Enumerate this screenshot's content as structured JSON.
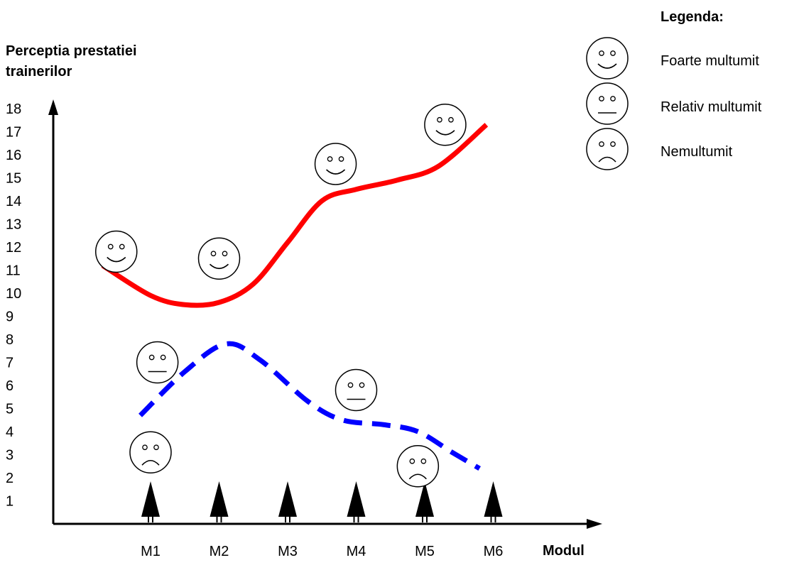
{
  "chart_data": {
    "type": "line",
    "ylabel": "Perceptia prestatiei trainerilor",
    "xlabel": "Modul",
    "categories": [
      "M1",
      "M2",
      "M3",
      "M4",
      "M5",
      "M6"
    ],
    "y_ticks": [
      1,
      2,
      3,
      4,
      5,
      6,
      7,
      8,
      9,
      10,
      11,
      12,
      13,
      14,
      15,
      16,
      17,
      18
    ],
    "ylim": [
      0,
      19
    ],
    "series": [
      {
        "color": "#ff0000",
        "style": "solid",
        "points": [
          {
            "x": 0.3,
            "y": 11.2
          },
          {
            "x": 1.0,
            "y": 9.9
          },
          {
            "x": 1.5,
            "y": 9.5
          },
          {
            "x": 2.0,
            "y": 9.6
          },
          {
            "x": 2.5,
            "y": 10.4
          },
          {
            "x": 3.0,
            "y": 12.2
          },
          {
            "x": 3.5,
            "y": 14.0
          },
          {
            "x": 4.0,
            "y": 14.5
          },
          {
            "x": 4.6,
            "y": 14.9
          },
          {
            "x": 5.2,
            "y": 15.5
          },
          {
            "x": 5.9,
            "y": 17.3
          }
        ]
      },
      {
        "color": "#0000ff",
        "style": "dashed",
        "points": [
          {
            "x": 0.85,
            "y": 4.7
          },
          {
            "x": 1.5,
            "y": 6.6
          },
          {
            "x": 2.1,
            "y": 7.8
          },
          {
            "x": 2.6,
            "y": 7.1
          },
          {
            "x": 3.3,
            "y": 5.3
          },
          {
            "x": 3.8,
            "y": 4.5
          },
          {
            "x": 4.4,
            "y": 4.3
          },
          {
            "x": 4.9,
            "y": 4.0
          },
          {
            "x": 5.4,
            "y": 3.1
          },
          {
            "x": 5.8,
            "y": 2.4
          }
        ]
      }
    ],
    "annotations": [
      {
        "face": "happy",
        "x": 0.5,
        "y": 11.8
      },
      {
        "face": "happy",
        "x": 2.0,
        "y": 11.5
      },
      {
        "face": "happy",
        "x": 3.7,
        "y": 15.6
      },
      {
        "face": "happy",
        "x": 5.3,
        "y": 17.3
      },
      {
        "face": "neutral",
        "x": 1.1,
        "y": 7.0
      },
      {
        "face": "neutral",
        "x": 4.0,
        "y": 5.8
      },
      {
        "face": "sad",
        "x": 1.0,
        "y": 3.1
      },
      {
        "face": "sad",
        "x": 4.9,
        "y": 2.5
      }
    ],
    "markers": {
      "type": "up-arrow",
      "at": [
        "M1",
        "M2",
        "M3",
        "M4",
        "M5",
        "M6"
      ]
    },
    "legend": {
      "title": "Legenda:",
      "position": "top-right",
      "items": [
        {
          "face": "happy",
          "label": "Foarte multumit"
        },
        {
          "face": "neutral",
          "label": "Relativ multumit"
        },
        {
          "face": "sad",
          "label": "Nemultumit"
        }
      ]
    },
    "grid": false
  }
}
